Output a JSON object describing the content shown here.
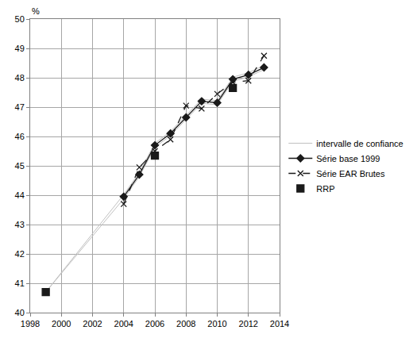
{
  "chart_data": {
    "type": "line",
    "y_label": "%",
    "x": [
      1999,
      2004,
      2005,
      2006,
      2007,
      2008,
      2009,
      2010,
      2011,
      2012,
      2013
    ],
    "series": [
      {
        "name": "intervalle de confiance",
        "color": "#c0c0c0",
        "marker": "none",
        "line_style": "solid",
        "values": [
          40.7,
          44.02,
          44.77,
          45.77,
          46.17,
          46.72,
          47.27,
          47.22,
          48.02,
          48.17,
          48.42
        ],
        "lower": [
          40.7,
          43.88,
          44.63,
          45.63,
          46.03,
          46.58,
          47.13,
          47.08,
          47.88,
          48.03,
          48.28
        ]
      },
      {
        "name": "Série base 1999",
        "color": "#1a1a1a",
        "marker": "diamond",
        "line_style": "solid",
        "values": [
          null,
          43.95,
          44.7,
          45.7,
          46.1,
          46.65,
          47.2,
          47.15,
          47.95,
          48.1,
          48.35
        ]
      },
      {
        "name": "Série EAR Brutes",
        "color": "#1a1a1a",
        "marker": "x",
        "line_style": "dash",
        "values": [
          null,
          43.7,
          44.95,
          45.5,
          45.9,
          47.05,
          46.95,
          47.45,
          47.85,
          47.9,
          48.75
        ]
      },
      {
        "name": "RRP",
        "color": "#1a1a1a",
        "marker": "square",
        "line_style": "none",
        "values": [
          40.7,
          null,
          null,
          45.35,
          null,
          null,
          null,
          null,
          47.65,
          null,
          null
        ]
      }
    ],
    "xlim": [
      1998,
      2014
    ],
    "xticks": [
      1998,
      2000,
      2002,
      2004,
      2006,
      2008,
      2010,
      2012,
      2014
    ],
    "ylim": [
      40,
      50
    ],
    "yticks": [
      40,
      41,
      42,
      43,
      44,
      45,
      46,
      47,
      48,
      49,
      50
    ],
    "grid": true,
    "legend": "right"
  }
}
